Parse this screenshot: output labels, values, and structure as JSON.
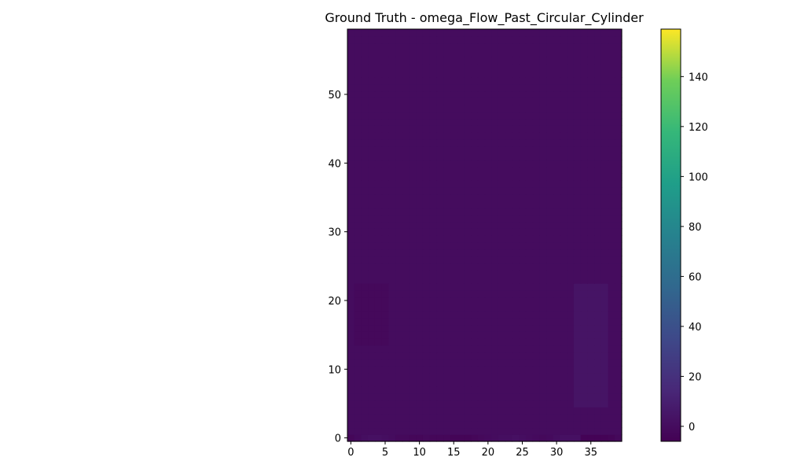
{
  "chart_data": {
    "type": "heatmap",
    "title": "Ground Truth - omega_Flow_Past_Circular_Cylinder",
    "xlabel": "",
    "ylabel": "",
    "xlim": [
      -0.5,
      39.5
    ],
    "ylim": [
      -0.5,
      59.5
    ],
    "x_ticks": [
      0,
      5,
      10,
      15,
      20,
      25,
      30,
      35
    ],
    "y_ticks": [
      0,
      10,
      20,
      30,
      40,
      50
    ],
    "colormap": "viridis",
    "colorbar": {
      "vmin": -6,
      "vmax": 159,
      "ticks": [
        0,
        20,
        40,
        60,
        80,
        100,
        120,
        140
      ]
    },
    "grid": false,
    "field_summary": {
      "typical_value": 0,
      "bottom_row_values": [
        -3,
        -1,
        1,
        2,
        2,
        1,
        0,
        -2,
        -2,
        -3,
        -3,
        -2,
        -3,
        -3,
        -3,
        -4,
        -4,
        -4,
        -3,
        -2,
        -1,
        0,
        1,
        1,
        2,
        1,
        0,
        -1,
        -2,
        -1,
        1,
        2,
        2,
        2,
        -5,
        -5,
        -5,
        -5,
        -4,
        -2
      ],
      "left_wall_dark_region": {
        "x_range": [
          1,
          5
        ],
        "y_range": [
          14,
          22
        ],
        "value": -2
      },
      "right_wall_light_region": {
        "x_range": [
          33,
          37
        ],
        "y_range": [
          5,
          22
        ],
        "value": 4
      }
    }
  }
}
